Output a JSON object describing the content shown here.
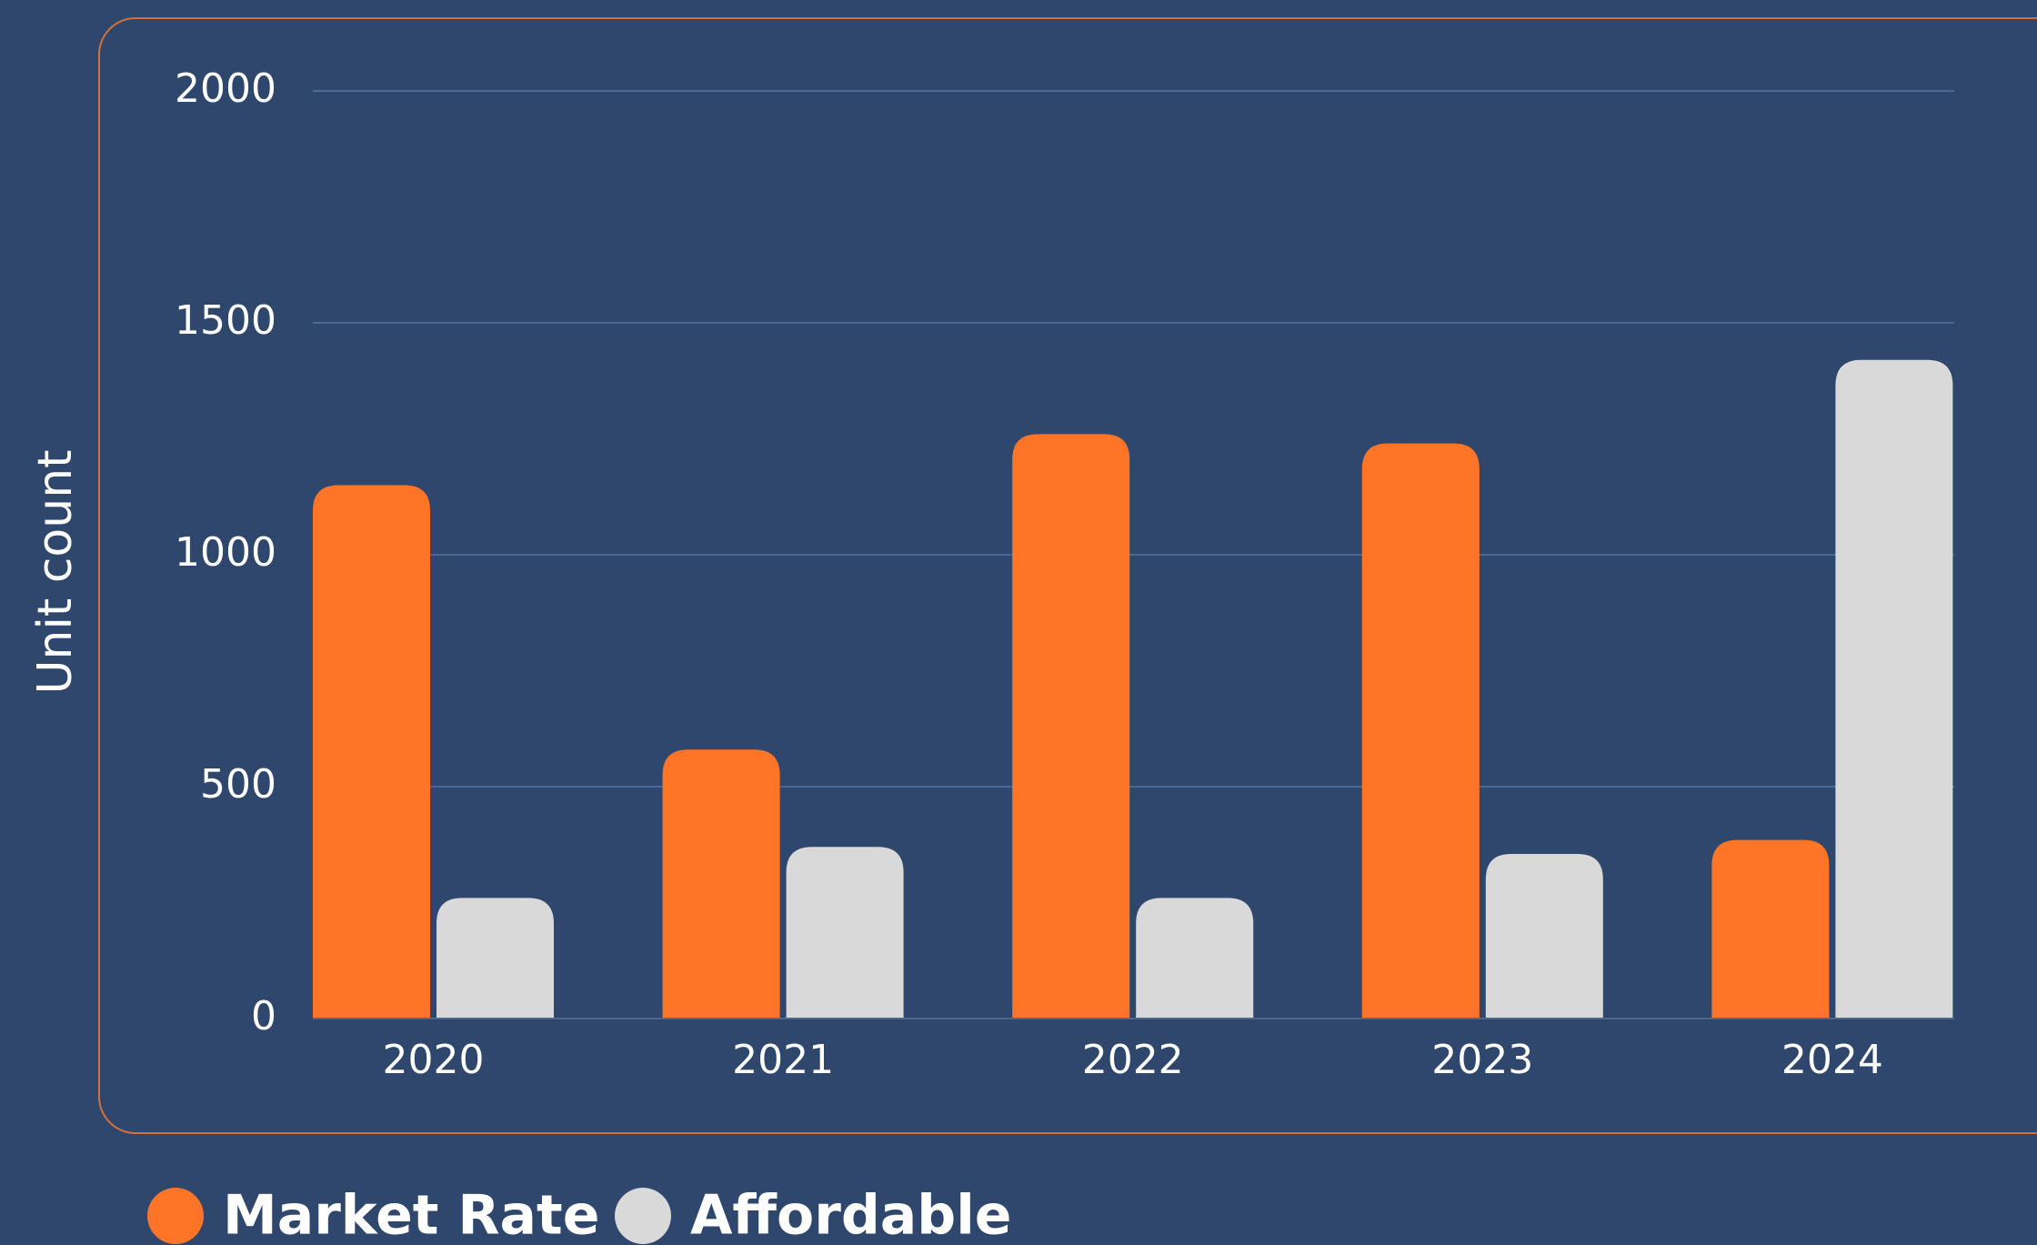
{
  "chart_data": {
    "type": "bar",
    "y_label": "Unit count",
    "categories": [
      "2020",
      "2021",
      "2022",
      "2023",
      "2024"
    ],
    "series": [
      {
        "name": "Market Rate",
        "color": "#ff7527",
        "values": [
          1150,
          580,
          1260,
          1240,
          385
        ]
      },
      {
        "name": "Affordable",
        "color": "#d9d9d9",
        "values": [
          260,
          370,
          260,
          355,
          1420
        ]
      }
    ],
    "ylim": [
      0,
      2000
    ],
    "yticks": [
      0,
      500,
      1000,
      1500,
      2000
    ],
    "grid": true,
    "legend": "bottom-left"
  }
}
